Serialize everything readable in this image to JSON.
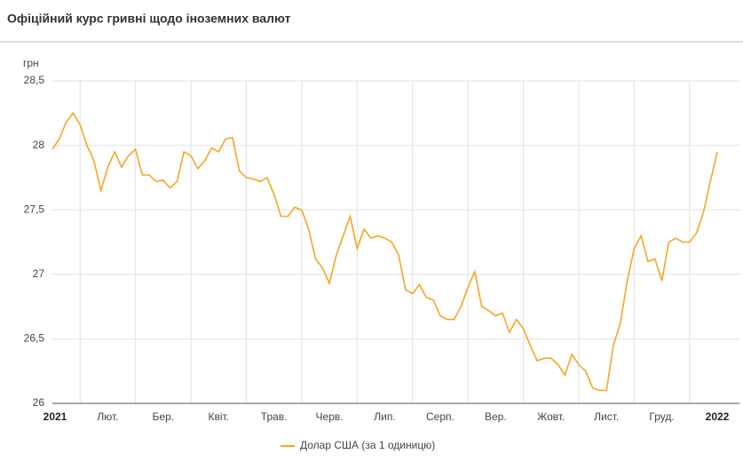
{
  "chart_data": {
    "type": "line",
    "title": "Офіційний курс гривні щодо іноземних валют",
    "y_label": "грн",
    "x": [
      "2021",
      null,
      null,
      null,
      null,
      null,
      null,
      null,
      "Лют.",
      null,
      null,
      null,
      null,
      null,
      null,
      null,
      "Бер.",
      null,
      null,
      null,
      null,
      null,
      null,
      null,
      "Квіт.",
      null,
      null,
      null,
      null,
      null,
      null,
      null,
      "Трав.",
      null,
      null,
      null,
      null,
      null,
      null,
      null,
      "Черв.",
      null,
      null,
      null,
      null,
      null,
      null,
      null,
      "Лип.",
      null,
      null,
      null,
      null,
      null,
      null,
      null,
      "Серп.",
      null,
      null,
      null,
      null,
      null,
      null,
      null,
      "Вер.",
      null,
      null,
      null,
      null,
      null,
      null,
      null,
      "Жовт.",
      null,
      null,
      null,
      null,
      null,
      null,
      null,
      "Лист.",
      null,
      null,
      null,
      null,
      null,
      null,
      null,
      "Груд.",
      null,
      null,
      null,
      null,
      null,
      null,
      null,
      "2022"
    ],
    "series": [
      {
        "name": "Долар США (за 1 одиницю)",
        "color": "#f5a623",
        "values": [
          27.97,
          28.05,
          28.18,
          28.25,
          28.16,
          28.0,
          27.88,
          27.65,
          27.83,
          27.95,
          27.83,
          27.92,
          27.97,
          27.77,
          27.77,
          27.72,
          27.73,
          27.67,
          27.72,
          27.95,
          27.92,
          27.82,
          27.88,
          27.98,
          27.95,
          28.05,
          28.06,
          27.8,
          27.75,
          27.74,
          27.72,
          27.75,
          27.62,
          27.45,
          27.45,
          27.52,
          27.5,
          27.35,
          27.12,
          27.05,
          26.93,
          27.15,
          27.3,
          27.45,
          27.2,
          27.35,
          27.28,
          27.3,
          27.28,
          27.25,
          27.15,
          26.88,
          26.85,
          26.92,
          26.82,
          26.8,
          26.68,
          26.65,
          26.65,
          26.75,
          26.9,
          27.02,
          26.75,
          26.72,
          26.68,
          26.7,
          26.55,
          26.65,
          26.58,
          26.45,
          26.33,
          26.35,
          26.35,
          26.3,
          26.22,
          26.38,
          26.3,
          26.25,
          26.12,
          26.1,
          26.1,
          26.45,
          26.62,
          26.95,
          27.2,
          27.3,
          27.1,
          27.12,
          26.95,
          27.25,
          27.28,
          27.25,
          27.25,
          27.32,
          27.48,
          27.72,
          27.95
        ]
      }
    ],
    "ylim": [
      26,
      28.5
    ],
    "yticks": [
      {
        "value": 26,
        "label": "26"
      },
      {
        "value": 26.5,
        "label": "26,5"
      },
      {
        "value": 27,
        "label": "27"
      },
      {
        "value": 27.5,
        "label": "27,5"
      },
      {
        "value": 28,
        "label": "28"
      },
      {
        "value": 28.5,
        "label": "28,5"
      }
    ],
    "grid": true
  }
}
